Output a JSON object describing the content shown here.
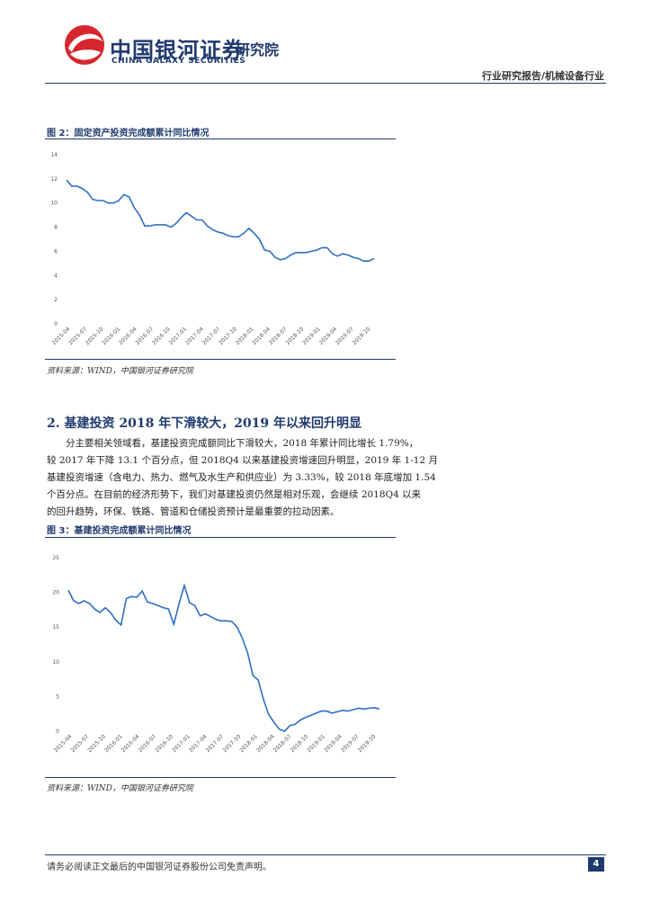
{
  "header": {
    "brand_cn": "中国银河证券",
    "brand_en": "CHINA GALAXY SECURITIES",
    "brand_sub": "研究院",
    "report_type": "行业研究报告/机械设备行业",
    "colors": {
      "brand": "#1f3a6e",
      "logo_red": "#d7262e",
      "line": "#2f6fc1"
    }
  },
  "figure2": {
    "title": "图 2：固定资产投资完成额累计同比情况",
    "source": "资料来源：WIND，中国银河证券研究院",
    "chart_data": {
      "type": "line",
      "ylim": [
        0,
        14
      ],
      "y_ticks": [
        "0",
        "2",
        "4",
        "6",
        "8",
        "10",
        "12",
        "14"
      ],
      "x_ticks": [
        "2015-04",
        "2015-07",
        "2015-10",
        "2016-01",
        "2016-04",
        "2016-07",
        "2016-10",
        "2017-01",
        "2017-04",
        "2017-07",
        "2017-10",
        "2018-01",
        "2018-04",
        "2018-07",
        "2018-10",
        "2019-01",
        "2019-04",
        "2019-07",
        "2019-10"
      ],
      "values": [
        11.9,
        11.4,
        11.4,
        11.2,
        10.9,
        10.3,
        10.2,
        10.2,
        10.0,
        10.0,
        10.2,
        10.7,
        10.5,
        9.6,
        9.0,
        8.1,
        8.1,
        8.2,
        8.2,
        8.2,
        8.0,
        8.3,
        8.8,
        9.2,
        8.9,
        8.6,
        8.6,
        8.1,
        7.8,
        7.6,
        7.5,
        7.3,
        7.2,
        7.2,
        7.5,
        7.9,
        7.5,
        7.0,
        6.1,
        6.0,
        5.5,
        5.3,
        5.4,
        5.7,
        5.9,
        5.9,
        5.9,
        6.0,
        6.1,
        6.3,
        6.3,
        5.8,
        5.6,
        5.8,
        5.7,
        5.5,
        5.4,
        5.2,
        5.2,
        5.4
      ]
    }
  },
  "section": {
    "title": "2. 基建投资 2018 年下滑较大，2019 年以来回升明显",
    "paragraph_lines": [
      "分主要相关领域看，基建投资完成额同比下滑较大，2018 年累计同比增长 1.79%，",
      "较 2017 年下降 13.1 个百分点，但 2018Q4 以来基建投资增速回升明显，2019 年 1-12 月",
      "基建投资增速（含电力、热力、燃气及水生产和供应业）为 3.33%，较 2018 年底增加 1.54",
      "个百分点。在目前的经济形势下，我们对基建投资仍然是相对乐观，会继续 2018Q4 以来",
      "的回升趋势，环保、铁路、管道和仓储投资预计是最重要的拉动因素。"
    ]
  },
  "figure3": {
    "title": "图 3：基建投资完成额累计同比情况",
    "source": "资料来源：WIND，中国银河证券研究院",
    "chart_data": {
      "type": "line",
      "ylim": [
        0,
        25
      ],
      "y_ticks": [
        "0",
        "5",
        "10",
        "15",
        "20",
        "25"
      ],
      "x_ticks": [
        "2015-04",
        "2015-07",
        "2015-10",
        "2016-01",
        "2016-04",
        "2016-07",
        "2016-10",
        "2017-01",
        "2017-04",
        "2017-07",
        "2017-10",
        "2018-01",
        "2018-04",
        "2018-07",
        "2018-10",
        "2019-01",
        "2019-04",
        "2019-07",
        "2019-10"
      ],
      "values": [
        20.3,
        18.8,
        18.4,
        18.8,
        18.4,
        17.6,
        17.1,
        17.8,
        17.1,
        16.0,
        15.3,
        19.1,
        19.4,
        19.3,
        20.2,
        18.6,
        18.4,
        18.1,
        17.8,
        17.6,
        15.4,
        18.4,
        21.0,
        18.5,
        18.1,
        16.6,
        16.9,
        16.5,
        16.1,
        15.9,
        15.9,
        15.8,
        15.0,
        13.4,
        11.3,
        8.0,
        7.4,
        4.6,
        2.4,
        1.3,
        0.3,
        0.0,
        0.8,
        1.0,
        1.6,
        2.0,
        2.3,
        2.6,
        2.9,
        2.9,
        2.6,
        2.8,
        3.0,
        2.9,
        3.1,
        3.3,
        3.2,
        3.3,
        3.4,
        3.2
      ]
    }
  },
  "footer": {
    "disclaimer": "请务必阅读正文最后的中国银河证券股份公司免责声明。",
    "page": "4"
  }
}
